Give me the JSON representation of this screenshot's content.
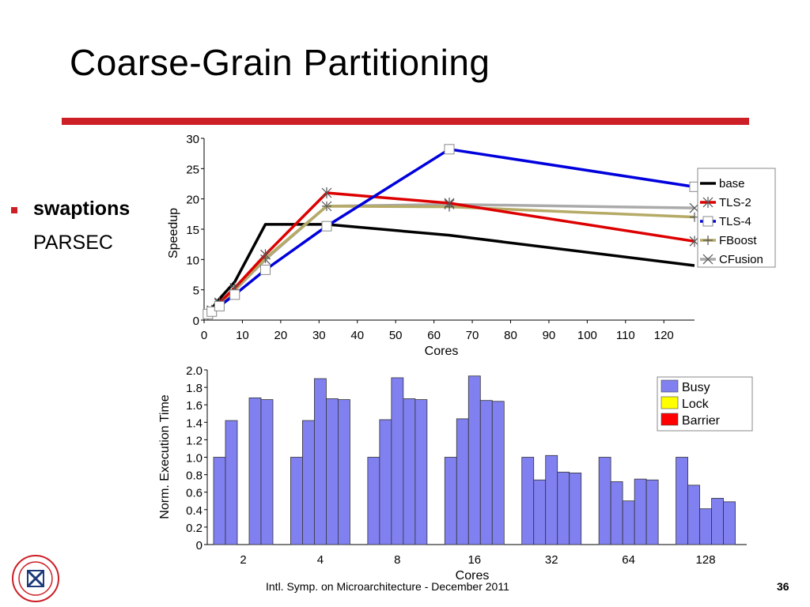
{
  "slide": {
    "title": "Coarse-Grain Partitioning",
    "bullet_bold": "swaptions",
    "bullet_sub": "PARSEC",
    "footer": "Intl. Symp. on Microarchitecture - December 2011",
    "page_number": "36"
  },
  "colors": {
    "rule": "#cc1f26",
    "base": "#000000",
    "tls2": "#dd0000",
    "tls4": "#0000dd",
    "fboost": "#b5aa66",
    "cfusion": "#aaaaaa",
    "busy": "#8080f0",
    "lock": "#ffff00",
    "barrier": "#ff0000"
  },
  "chart_data": [
    {
      "type": "line",
      "xlabel": "Cores",
      "ylabel": "Speedup",
      "xlim": [
        0,
        128
      ],
      "ylim": [
        0,
        30
      ],
      "x_ticks": [
        0,
        10,
        20,
        30,
        40,
        50,
        60,
        70,
        80,
        90,
        100,
        110,
        120
      ],
      "y_ticks": [
        0,
        5,
        10,
        15,
        20,
        25,
        30
      ],
      "legend_position": "right",
      "series": [
        {
          "name": "base",
          "color": "#000000",
          "marker": "none",
          "x": [
            1,
            2,
            4,
            8,
            16,
            32,
            64,
            128
          ],
          "y": [
            1,
            1.9,
            3.5,
            6.3,
            15.8,
            15.8,
            14,
            9
          ]
        },
        {
          "name": "TLS-2",
          "color": "#dd0000",
          "marker": "star",
          "x": [
            1,
            2,
            4,
            8,
            16,
            32,
            64,
            128
          ],
          "y": [
            1,
            1.6,
            2.9,
            5.3,
            10.8,
            21,
            19.3,
            13
          ]
        },
        {
          "name": "TLS-4",
          "color": "#0000dd",
          "marker": "square",
          "x": [
            1,
            2,
            4,
            8,
            16,
            32,
            64,
            128
          ],
          "y": [
            1,
            1.4,
            2.3,
            4.2,
            8.3,
            15.5,
            28.2,
            22
          ]
        },
        {
          "name": "FBoost",
          "color": "#b5aa66",
          "marker": "plus",
          "x": [
            1,
            2,
            4,
            8,
            16,
            32,
            64,
            128
          ],
          "y": [
            1,
            1.5,
            2.7,
            5,
            10.2,
            18.8,
            18.7,
            17
          ]
        },
        {
          "name": "CFusion",
          "color": "#aaaaaa",
          "marker": "x",
          "x": [
            1,
            2,
            4,
            8,
            16,
            32,
            64,
            128
          ],
          "y": [
            1,
            1.5,
            2.7,
            4.9,
            10,
            18.8,
            19.1,
            18.5
          ]
        }
      ]
    },
    {
      "type": "bar",
      "xlabel": "Cores",
      "ylabel": "Norm. Execution Time",
      "ylim": [
        0,
        2.0
      ],
      "y_ticks": [
        "0",
        "0.2",
        "0.4",
        "0.6",
        "0.8",
        "1.0",
        "1.2",
        "1.4",
        "1.6",
        "1.8",
        "2.0"
      ],
      "categories": [
        "2",
        "4",
        "8",
        "16",
        "32",
        "64",
        "128"
      ],
      "bars_per_group": [
        "base",
        "TLS-2",
        "TLS-4",
        "FBoost",
        "CFusion"
      ],
      "legend_position": "top-right",
      "legend": [
        {
          "name": "Busy",
          "color": "#8080f0"
        },
        {
          "name": "Lock",
          "color": "#ffff00"
        },
        {
          "name": "Barrier",
          "color": "#ff0000"
        }
      ],
      "series": [
        {
          "name": "Busy",
          "values": [
            [
              1.0,
              1.42,
              0.0,
              1.68,
              1.66
            ],
            [
              1.0,
              1.42,
              1.9,
              1.67,
              1.66
            ],
            [
              1.0,
              1.43,
              1.91,
              1.67,
              1.66
            ],
            [
              1.0,
              1.44,
              1.93,
              1.65,
              1.64
            ],
            [
              1.0,
              0.74,
              1.02,
              0.83,
              0.82
            ],
            [
              1.0,
              0.72,
              0.5,
              0.75,
              0.74
            ],
            [
              1.0,
              0.68,
              0.41,
              0.53,
              0.49
            ]
          ]
        }
      ]
    }
  ]
}
